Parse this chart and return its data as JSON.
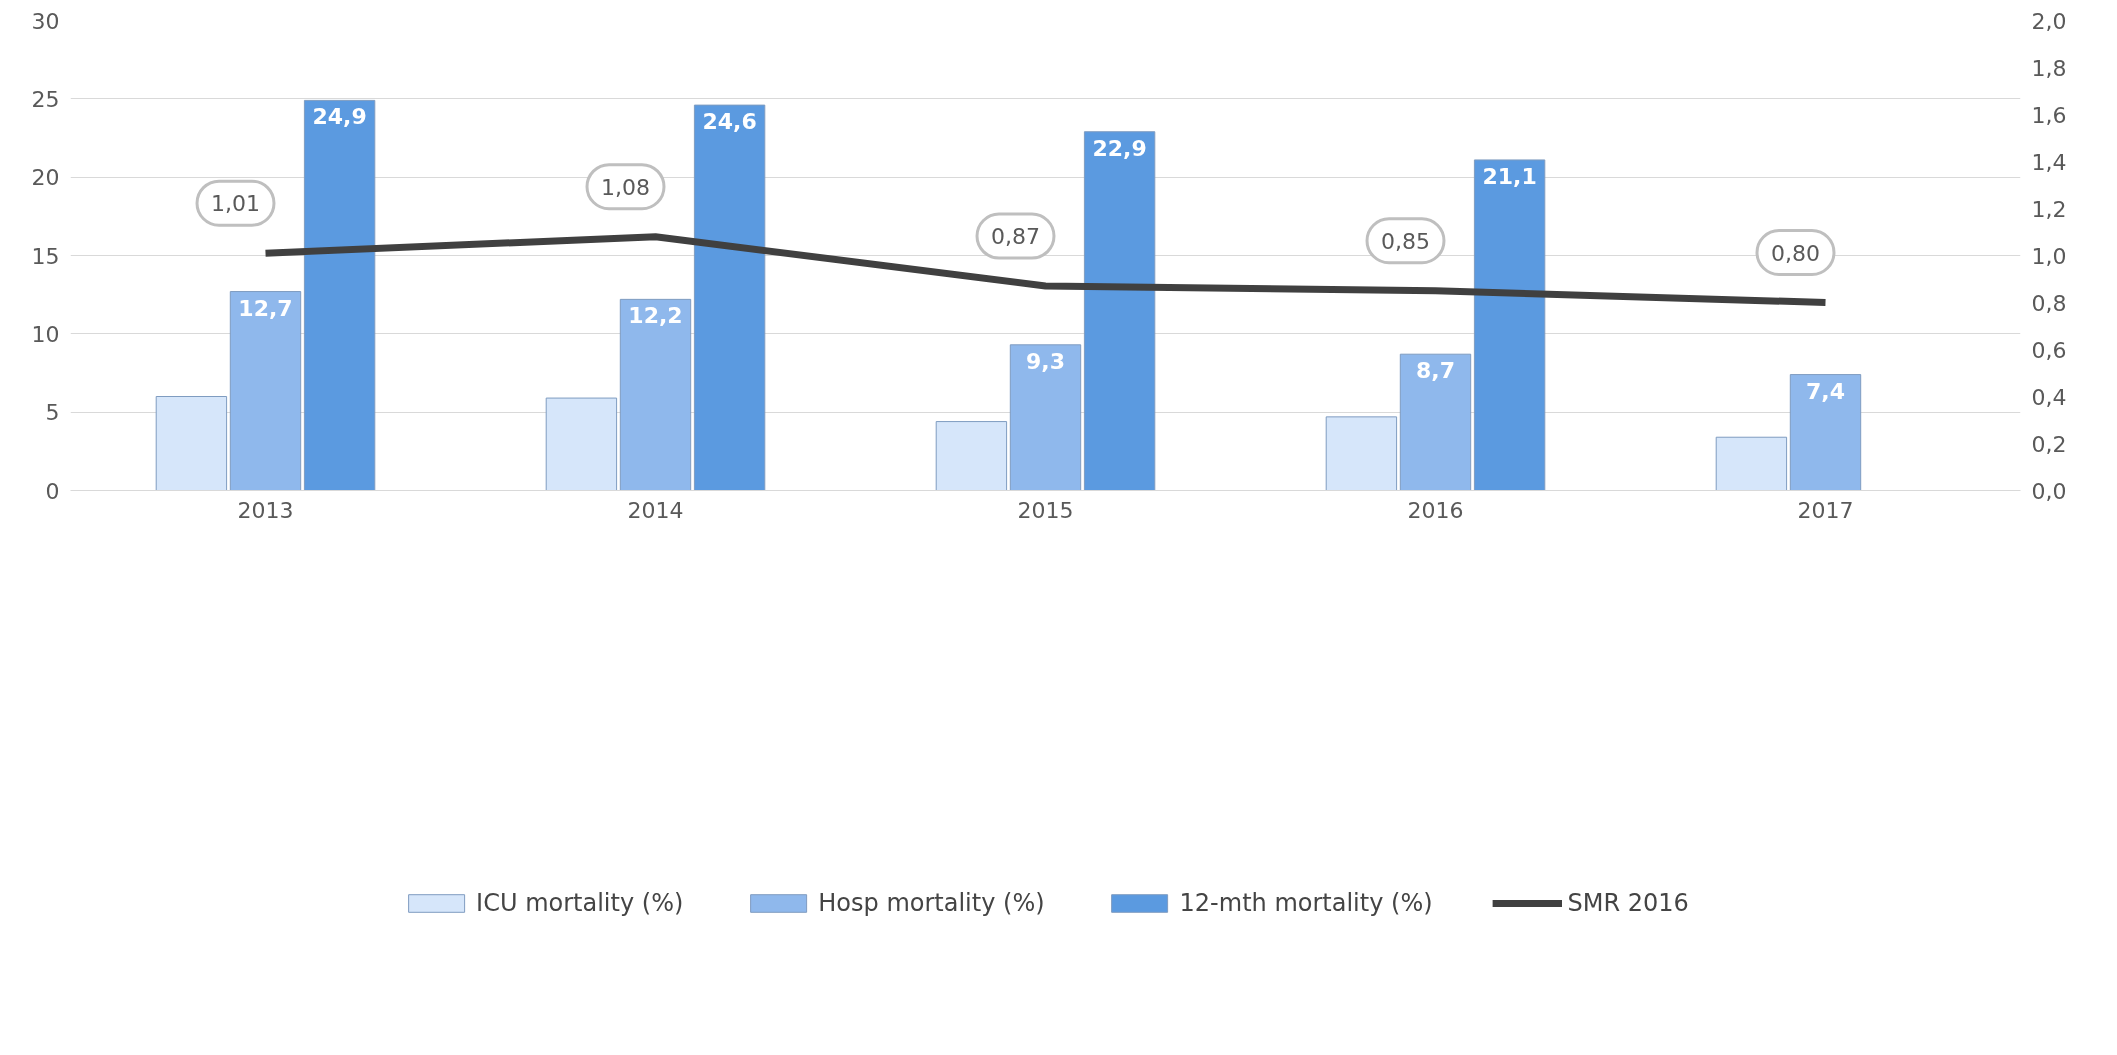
{
  "chart_data": {
    "type": "bar",
    "categories": [
      "2013",
      "2014",
      "2015",
      "2016",
      "2017"
    ],
    "series": [
      {
        "name": "ICU mortality (%)",
        "color": "#d6e6fa",
        "values": [
          6.0,
          5.9,
          4.4,
          4.7,
          3.4
        ]
      },
      {
        "name": "Hosp mortality (%)",
        "color": "#8fb8ec",
        "values": [
          12.7,
          12.2,
          9.3,
          8.7,
          7.4
        ],
        "value_labels": [
          "12,7",
          "12,2",
          "9,3",
          "8,7",
          "7,4"
        ]
      },
      {
        "name": "12-mth mortality (%)",
        "color": "#5b9ae0",
        "values": [
          24.9,
          24.6,
          22.9,
          21.1,
          null
        ],
        "value_labels": [
          "24,9",
          "24,6",
          "22,9",
          "21,1",
          null
        ]
      },
      {
        "name": "SMR 2016",
        "type": "line",
        "axis": "y2",
        "color": "#404040",
        "values": [
          1.01,
          1.08,
          0.87,
          0.85,
          0.8
        ],
        "value_labels": [
          "1,01",
          "1,08",
          "0,87",
          "0,85",
          "0,80"
        ]
      }
    ],
    "ylim": [
      0,
      30
    ],
    "yticks": [
      0,
      5,
      10,
      15,
      20,
      25,
      30
    ],
    "y2lim": [
      0,
      2
    ],
    "y2ticks": [
      {
        "value": 0,
        "label": "0,0"
      },
      {
        "value": 0.2,
        "label": "0,2"
      },
      {
        "value": 0.4,
        "label": "0,4"
      },
      {
        "value": 0.6,
        "label": "0,6"
      },
      {
        "value": 0.8,
        "label": "0,8"
      },
      {
        "value": 1.0,
        "label": "1,0"
      },
      {
        "value": 1.2,
        "label": "1,2"
      },
      {
        "value": 1.4,
        "label": "1,4"
      },
      {
        "value": 1.6,
        "label": "1,6"
      },
      {
        "value": 1.8,
        "label": "1,8"
      },
      {
        "value": 2.0,
        "label": "2,0"
      }
    ],
    "grid": "y",
    "legend": "bottom"
  }
}
